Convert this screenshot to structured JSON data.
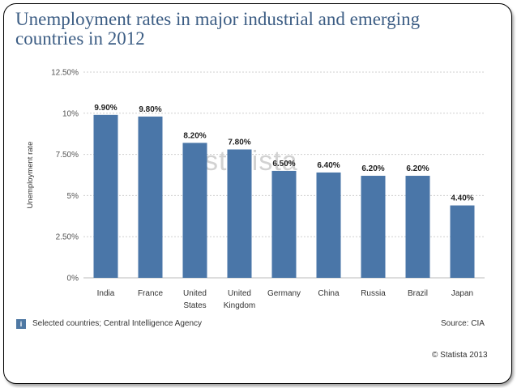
{
  "chart_data": {
    "type": "bar",
    "title": "Unemployment rates in major industrial and emerging countries in 2012",
    "ylabel": "Unemployment rate",
    "xlabel": "",
    "ylim": [
      0,
      12.5
    ],
    "yticks": [
      0,
      2.5,
      5,
      7.5,
      10,
      12.5
    ],
    "ytick_labels": [
      "0%",
      "2.50%",
      "5%",
      "7.50%",
      "10%",
      "12.50%"
    ],
    "categories": [
      [
        "India"
      ],
      [
        "France"
      ],
      [
        "United",
        "States"
      ],
      [
        "United",
        "Kingdom"
      ],
      [
        "Germany"
      ],
      [
        "China"
      ],
      [
        "Russia"
      ],
      [
        "Brazil"
      ],
      [
        "Japan"
      ]
    ],
    "values": [
      9.9,
      9.8,
      8.2,
      7.8,
      6.5,
      6.4,
      6.2,
      6.2,
      4.4
    ],
    "data_labels": [
      "9.90%",
      "9.80%",
      "8.20%",
      "7.80%",
      "6.50%",
      "6.40%",
      "6.20%",
      "6.20%",
      "4.40%"
    ],
    "bar_color": "#4a76a8",
    "grid": true
  },
  "header": {
    "title_line1": "Unemployment rates in major industrial and emerging",
    "title_line2": "countries in 2012"
  },
  "footer": {
    "info_icon_glyph": "i",
    "note": "Selected countries; Central Intelligence Agency",
    "source": "Source: CIA",
    "copyright": "© Statista 2013"
  },
  "watermark": "statista"
}
